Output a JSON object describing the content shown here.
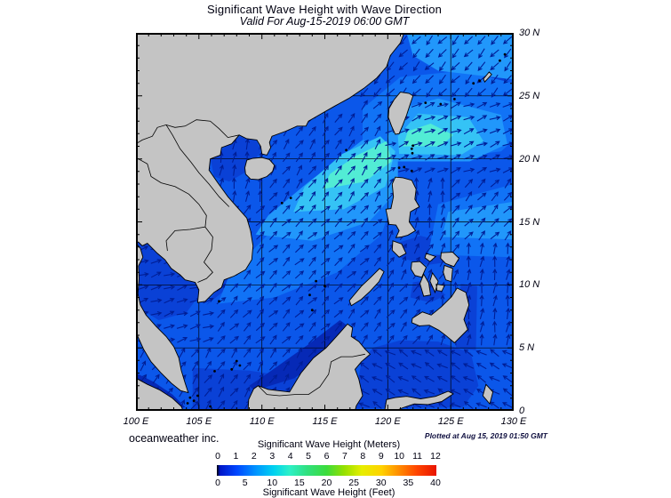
{
  "title": "Significant Wave Height with Wave Direction",
  "subtitle": "Valid For Aug-15-2019 06:00 GMT",
  "credit": "oceanweather inc.",
  "plotted_at": "Plotted at Aug 15, 2019 01:50 GMT",
  "axes": {
    "lon_range": [
      100,
      130
    ],
    "lat_range": [
      0,
      30
    ],
    "lon_labels": [
      "100 E",
      "105 E",
      "110 E",
      "115 E",
      "120 E",
      "125 E",
      "130 E"
    ],
    "lat_labels": [
      "30 N",
      "25 N",
      "20 N",
      "15 N",
      "10 N",
      "5 N",
      "0"
    ]
  },
  "legend": {
    "meters_label": "Significant Wave Height (Meters)",
    "feet_label": "Significant Wave Height (Feet)",
    "meters_ticks": [
      "0",
      "1",
      "2",
      "3",
      "4",
      "5",
      "6",
      "7",
      "8",
      "9",
      "10",
      "11",
      "12"
    ],
    "feet_ticks": [
      "0",
      "5",
      "10",
      "15",
      "20",
      "25",
      "30",
      "35",
      "40"
    ],
    "gradient": [
      [
        "0%",
        "#000000"
      ],
      [
        "1.5%",
        "#0016c8"
      ],
      [
        "9%",
        "#0046ff"
      ],
      [
        "18%",
        "#0096ff"
      ],
      [
        "26%",
        "#00d2f0"
      ],
      [
        "33%",
        "#2df0c8"
      ],
      [
        "41%",
        "#30e080"
      ],
      [
        "50%",
        "#3cdc3c"
      ],
      [
        "58%",
        "#96e000"
      ],
      [
        "66%",
        "#e6ee00"
      ],
      [
        "75%",
        "#ffd200"
      ],
      [
        "83%",
        "#ff8c00"
      ],
      [
        "91%",
        "#ff4600"
      ],
      [
        "100%",
        "#e81400"
      ]
    ]
  },
  "colors": {
    "land": "#c4c4c4",
    "coastline": "#000000",
    "border": "#000000",
    "grid": "#000000",
    "frame": "#000000",
    "arrow": "#001e96",
    "seaBase": "#0b57ea",
    "L1": "#1173f6",
    "L2": "#2197fb",
    "L3": "#35c3f5",
    "L4": "#52ecd5",
    "dark1": "#0a41d6",
    "dark2": "#0629b6"
  },
  "wave_height_patches": [
    {
      "name": "gulf-of-thailand",
      "color": "dark1",
      "pts": [
        [
          99.8,
          13.6
        ],
        [
          101.0,
          13.4
        ],
        [
          102.2,
          12.4
        ],
        [
          103.4,
          11.0
        ],
        [
          104.8,
          10.5
        ],
        [
          105.2,
          9.4
        ],
        [
          104.0,
          7.8
        ],
        [
          101.8,
          7.2
        ],
        [
          100.2,
          8.2
        ],
        [
          99.9,
          10.5
        ]
      ]
    },
    {
      "name": "gulf-of-tonkin",
      "color": "dark1",
      "pts": [
        [
          105.9,
          20.1
        ],
        [
          107.0,
          20.9
        ],
        [
          108.3,
          21.8
        ],
        [
          109.6,
          21.4
        ],
        [
          109.9,
          20.6
        ],
        [
          108.8,
          19.0
        ],
        [
          107.4,
          18.2
        ],
        [
          106.2,
          18.6
        ]
      ]
    },
    {
      "name": "java-karimata",
      "color": "dark1",
      "pts": [
        [
          104.5,
          3.4
        ],
        [
          109.0,
          3.2
        ],
        [
          113.0,
          2.6
        ],
        [
          117.0,
          2.4
        ],
        [
          117.0,
          0.0
        ],
        [
          104.5,
          0.0
        ]
      ]
    },
    {
      "name": "malacca-strait",
      "color": "dark2",
      "pts": [
        [
          100.0,
          3.0
        ],
        [
          101.4,
          2.3
        ],
        [
          102.9,
          1.3
        ],
        [
          103.9,
          0.3
        ],
        [
          103.3,
          0.1
        ],
        [
          101.6,
          1.5
        ],
        [
          100.0,
          2.5
        ]
      ]
    },
    {
      "name": "celebes-sea",
      "color": "dark1",
      "pts": [
        [
          117.2,
          0.2
        ],
        [
          117.9,
          3.8
        ],
        [
          118.8,
          5.0
        ],
        [
          121.0,
          5.6
        ],
        [
          124.0,
          5.5
        ],
        [
          126.6,
          4.6
        ],
        [
          127.2,
          2.0
        ],
        [
          126.0,
          0.3
        ]
      ]
    },
    {
      "name": "visayan-seas",
      "color": "dark1",
      "pts": [
        [
          120.8,
          12.2
        ],
        [
          123.2,
          11.6
        ],
        [
          124.8,
          11.8
        ],
        [
          125.2,
          13.2
        ],
        [
          122.6,
          13.9
        ],
        [
          121.0,
          13.4
        ]
      ]
    },
    {
      "name": "bohol-sea",
      "color": "dark1",
      "pts": [
        [
          121.8,
          9.0
        ],
        [
          123.4,
          8.6
        ],
        [
          124.6,
          9.2
        ],
        [
          123.2,
          10.4
        ],
        [
          122.0,
          10.2
        ]
      ]
    },
    {
      "name": "mindanao-east-fringe",
      "color": "dark1",
      "pts": [
        [
          125.4,
          5.0
        ],
        [
          127.0,
          4.8
        ],
        [
          127.1,
          9.9
        ],
        [
          125.8,
          10.1
        ]
      ]
    },
    {
      "name": "ryukyu-patch",
      "color": "dark1",
      "pts": [
        [
          126.6,
          25.6
        ],
        [
          129.2,
          25.7
        ],
        [
          129.6,
          27.4
        ],
        [
          127.6,
          27.6
        ]
      ]
    },
    {
      "name": "vietnam-coast-fringe",
      "color": "dark1",
      "pts": [
        [
          105.6,
          8.4
        ],
        [
          108.6,
          10.8
        ],
        [
          109.4,
          12.8
        ],
        [
          108.8,
          14.8
        ],
        [
          108.0,
          13.0
        ],
        [
          106.4,
          9.6
        ]
      ]
    },
    {
      "name": "borneo-coast-fringe",
      "color": "dark2",
      "pts": [
        [
          109.4,
          1.6
        ],
        [
          112.6,
          2.6
        ],
        [
          115.4,
          4.6
        ],
        [
          117.0,
          6.6
        ],
        [
          116.2,
          7.2
        ],
        [
          113.6,
          5.2
        ],
        [
          110.2,
          2.8
        ],
        [
          109.0,
          2.0
        ]
      ]
    },
    {
      "name": "central-scs-l1",
      "color": "L1",
      "pts": [
        [
          106.5,
          8.5
        ],
        [
          111.0,
          9.0
        ],
        [
          116.0,
          11.0
        ],
        [
          119.5,
          14.0
        ],
        [
          120.5,
          17.0
        ],
        [
          119.5,
          20.0
        ],
        [
          116.0,
          19.0
        ],
        [
          111.5,
          15.0
        ],
        [
          107.5,
          11.0
        ]
      ]
    },
    {
      "name": "east-ph-l1",
      "color": "L1",
      "pts": [
        [
          123.2,
          12.4
        ],
        [
          130.0,
          12.2
        ],
        [
          130.0,
          18.0
        ],
        [
          124.0,
          16.4
        ]
      ]
    },
    {
      "name": "taiwan-ecs-l1",
      "color": "L1",
      "pts": [
        [
          118.0,
          21.0
        ],
        [
          124.0,
          20.0
        ],
        [
          129.0,
          20.6
        ],
        [
          130.0,
          21.5
        ],
        [
          130.0,
          26.0
        ],
        [
          126.0,
          27.0
        ],
        [
          121.0,
          26.5
        ],
        [
          118.0,
          24.0
        ]
      ]
    },
    {
      "name": "ne-scs-l2",
      "color": "L2",
      "pts": [
        [
          109.5,
          14.0
        ],
        [
          114.0,
          13.5
        ],
        [
          118.5,
          15.0
        ],
        [
          120.8,
          17.5
        ],
        [
          120.8,
          21.0
        ],
        [
          118.0,
          21.5
        ],
        [
          113.5,
          18.0
        ],
        [
          110.5,
          15.5
        ]
      ]
    },
    {
      "name": "east-taiwan-l2",
      "color": "L2",
      "pts": [
        [
          120.5,
          19.8
        ],
        [
          126.5,
          19.8
        ],
        [
          129.5,
          21.2
        ],
        [
          129.0,
          23.5
        ],
        [
          124.0,
          24.8
        ],
        [
          121.0,
          24.0
        ],
        [
          120.0,
          21.8
        ]
      ]
    },
    {
      "name": "top-right-l2",
      "color": "L2",
      "pts": [
        [
          121.5,
          30.0
        ],
        [
          130.0,
          30.0
        ],
        [
          130.0,
          26.3
        ],
        [
          124.0,
          27.0
        ],
        [
          122.0,
          28.2
        ]
      ]
    },
    {
      "name": "east-ph-l2",
      "color": "L2",
      "pts": [
        [
          124.3,
          13.8
        ],
        [
          130.0,
          13.6
        ],
        [
          130.0,
          16.6
        ],
        [
          124.8,
          15.8
        ]
      ]
    },
    {
      "name": "ne-scs-l3",
      "color": "L3",
      "pts": [
        [
          112.5,
          15.8
        ],
        [
          116.5,
          16.0
        ],
        [
          119.8,
          17.8
        ],
        [
          120.6,
          20.6
        ],
        [
          119.4,
          21.8
        ],
        [
          116.4,
          20.4
        ],
        [
          113.4,
          17.8
        ]
      ]
    },
    {
      "name": "east-taiwan-l3",
      "color": "L3",
      "pts": [
        [
          120.9,
          20.4
        ],
        [
          125.8,
          20.3
        ],
        [
          127.6,
          21.4
        ],
        [
          126.4,
          23.3
        ],
        [
          122.4,
          23.6
        ],
        [
          120.8,
          21.8
        ]
      ]
    },
    {
      "name": "ne-scs-l4",
      "color": "L4",
      "pts": [
        [
          114.8,
          17.6
        ],
        [
          118.2,
          18.2
        ],
        [
          120.3,
          19.8
        ],
        [
          119.9,
          21.4
        ],
        [
          117.4,
          20.2
        ],
        [
          115.4,
          18.8
        ]
      ]
    },
    {
      "name": "east-taiwan-l4",
      "color": "L4",
      "pts": [
        [
          121.2,
          21.0
        ],
        [
          124.2,
          21.0
        ],
        [
          125.2,
          21.9
        ],
        [
          123.4,
          22.8
        ],
        [
          121.6,
          22.2
        ]
      ]
    }
  ],
  "wave_field": {
    "arrow_color": "#001e96",
    "regions": [
      {
        "name": "south-scs",
        "lon": [
          100,
          121
        ],
        "lat": [
          0,
          16.5
        ],
        "dir_deg": 45
      },
      {
        "name": "gulf-of-thailand",
        "lon": [
          99,
          106.6
        ],
        "lat": [
          5.5,
          14
        ],
        "dir_deg": 18
      },
      {
        "name": "karimata-java",
        "lon": [
          100,
          115.5
        ],
        "lat": [
          0,
          5
        ],
        "dir_deg": 55
      },
      {
        "name": "north-scs",
        "lon": [
          104.5,
          121
        ],
        "lat": [
          16.5,
          23.8
        ],
        "dir_deg": 55
      },
      {
        "name": "gulf-of-tonkin",
        "lon": [
          105,
          110.5
        ],
        "lat": [
          16.5,
          22
        ],
        "dir_deg": 80
      },
      {
        "name": "philippine-sea",
        "lon": [
          121.5,
          130
        ],
        "lat": [
          3.5,
          18.5
        ],
        "dir_deg": 82
      },
      {
        "name": "sulu-sea",
        "lon": [
          116.5,
          123.5
        ],
        "lat": [
          5,
          10.5
        ],
        "dir_deg": 50
      },
      {
        "name": "visayan-seas",
        "lon": [
          120,
          126
        ],
        "lat": [
          10.5,
          14
        ],
        "dir_deg": 60
      },
      {
        "name": "east-of-luzon",
        "lon": [
          124.5,
          130
        ],
        "lat": [
          13.5,
          18.5
        ],
        "dir_deg": 48
      },
      {
        "name": "east-of-taiwan",
        "lon": [
          120,
          130
        ],
        "lat": [
          18.5,
          25.2
        ],
        "dir_deg": 22
      },
      {
        "name": "taiwan-strait",
        "lon": [
          117.5,
          121.8
        ],
        "lat": [
          23.8,
          27.6
        ],
        "dir_deg": 48
      },
      {
        "name": "ecs-pacific-north",
        "lon": [
          117.5,
          130
        ],
        "lat": [
          25.2,
          30
        ],
        "dir_deg": 228
      },
      {
        "name": "celebes-sea",
        "lon": [
          115.5,
          130
        ],
        "lat": [
          0,
          5
        ],
        "dir_deg": 150
      }
    ]
  }
}
